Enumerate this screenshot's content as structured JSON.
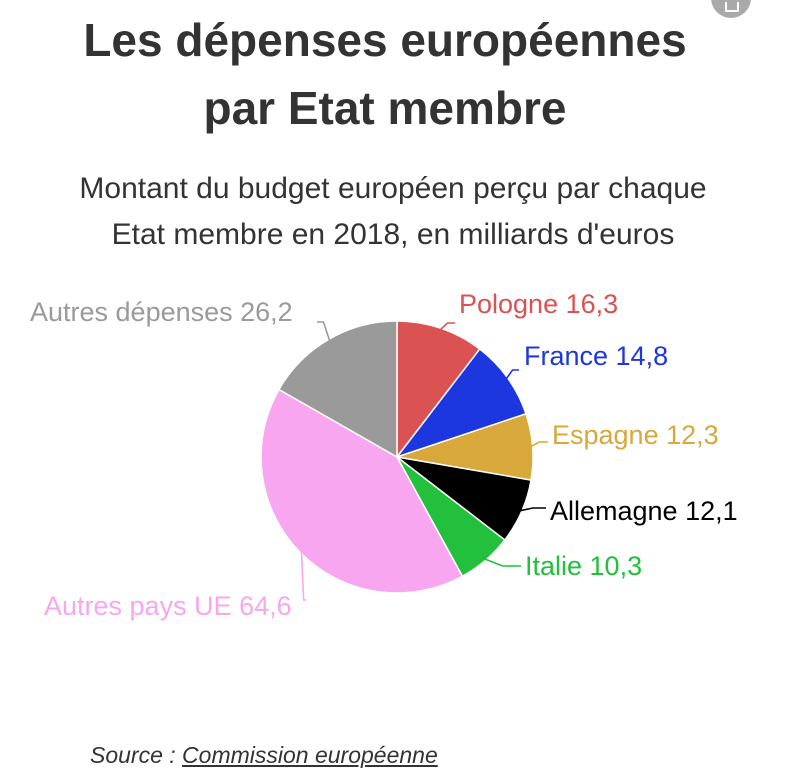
{
  "chart_data": {
    "type": "pie",
    "title": "Les dépenses européennes par Etat membre",
    "title_lines": [
      "Les dépenses européennes",
      "par Etat membre"
    ],
    "subtitle": "Montant du budget européen perçu par chaque Etat membre en 2018, en milliards d'euros",
    "subtitle_lines": [
      "Montant du budget européen perçu par chaque",
      "Etat membre en 2018, en milliards d'euros"
    ],
    "slices": [
      {
        "name": "Pologne",
        "value": 16.3,
        "label": "Pologne 16,3",
        "color": "#db5253",
        "label_color": "#db5253"
      },
      {
        "name": "France",
        "value": 14.8,
        "label": "France 14,8",
        "color": "#1d37e0",
        "label_color": "#1d37e0"
      },
      {
        "name": "Espagne",
        "value": 12.3,
        "label": "Espagne 12,3",
        "color": "#d8a83a",
        "label_color": "#d8a83a"
      },
      {
        "name": "Allemagne",
        "value": 12.1,
        "label": "Allemagne 12,1",
        "color": "#000000",
        "label_color": "#000000"
      },
      {
        "name": "Italie",
        "value": 10.3,
        "label": "Italie 10,3",
        "color": "#22c03c",
        "label_color": "#22c03c"
      },
      {
        "name": "Autres pays UE",
        "value": 64.6,
        "label": "Autres pays UE 64,6",
        "color": "#f8a6ef",
        "label_color": "#f8a6ef"
      },
      {
        "name": "Autres dépenses",
        "value": 26.2,
        "label": "Autres dépenses 26,2",
        "color": "#9a9a9a",
        "label_color": "#9a9a9a"
      }
    ],
    "legend": "labels-on-slices"
  },
  "source": {
    "prefix": "Source : ",
    "link_text": "Commission européenne"
  },
  "corner_button": {
    "icon": "print-icon"
  }
}
